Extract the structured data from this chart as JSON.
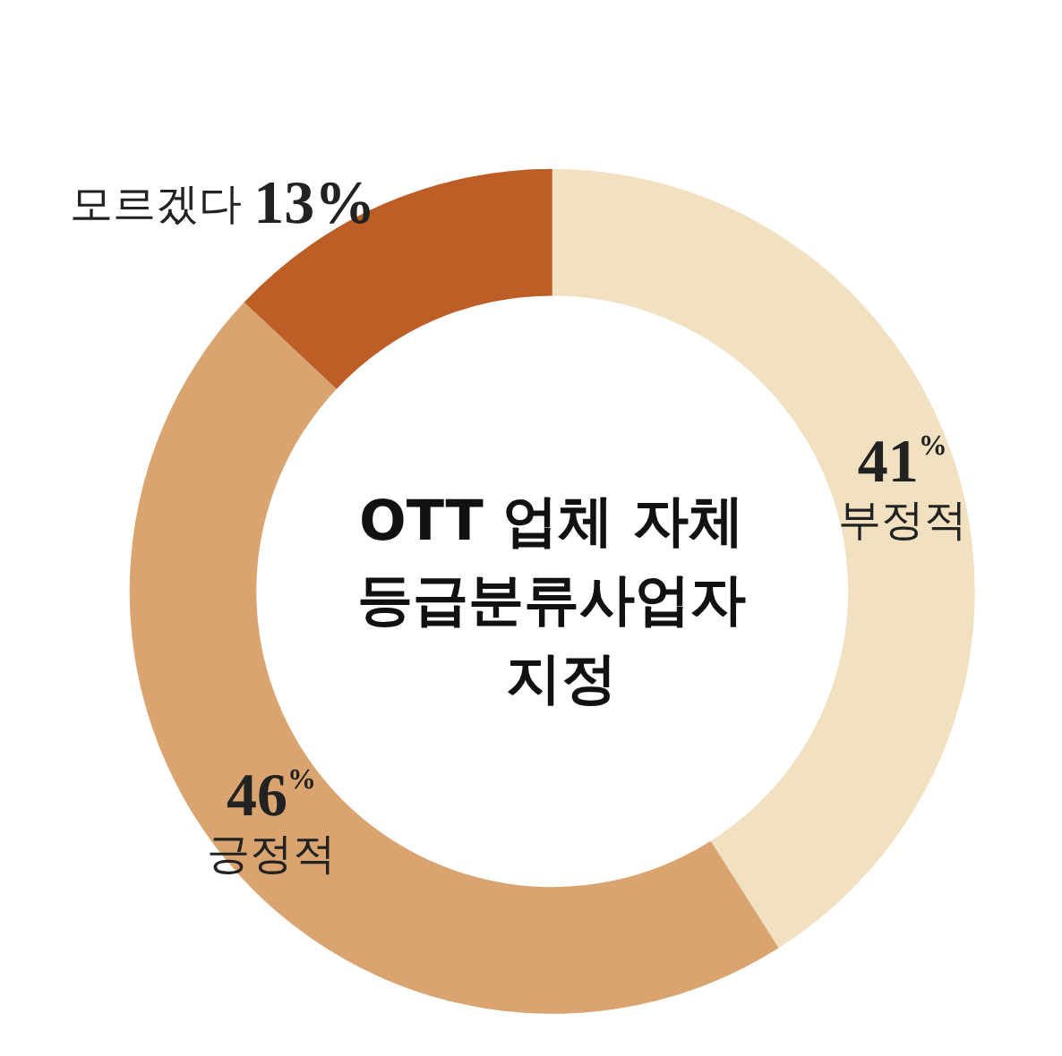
{
  "chart_data": {
    "type": "donut",
    "title": "OTT 업체 자체 등급분류사업자 지정",
    "categories": [
      "부정적",
      "긍정적",
      "모르겠다"
    ],
    "values": [
      41,
      46,
      13
    ],
    "value_labels": [
      "41%",
      "46%",
      "13%"
    ],
    "colors": [
      "#f2e1c0",
      "#d9a46f",
      "#bd5e26"
    ],
    "legend": false
  }
}
